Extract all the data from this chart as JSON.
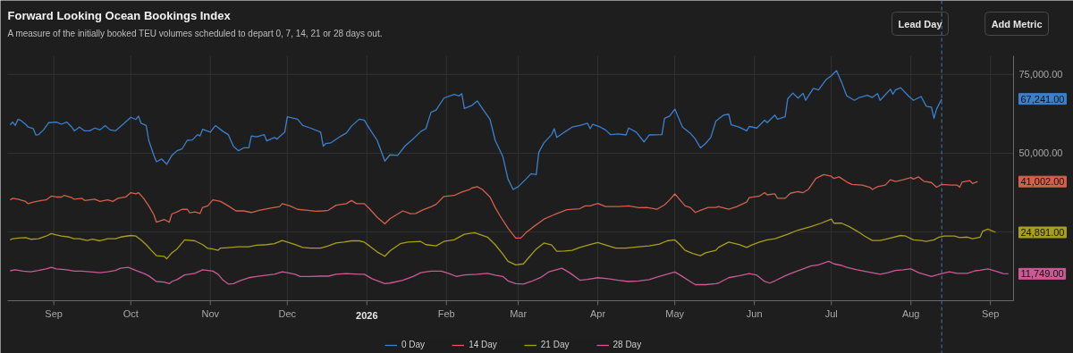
{
  "chart_data": {
    "type": "line",
    "title": "Forward Looking Ocean Bookings Index",
    "subtitle": "A measure of the initially booked TEU volumes scheduled to depart 0, 7, 14, 21 or 28 days out.",
    "xlim": [
      "2025-08-14",
      "2026-09-10"
    ],
    "xticks": [
      {
        "value": "2025-09-01",
        "label": "Sep"
      },
      {
        "value": "2025-10-01",
        "label": "Oct"
      },
      {
        "value": "2025-11-01",
        "label": "Nov"
      },
      {
        "value": "2025-12-01",
        "label": "Dec"
      },
      {
        "value": "2026-01-01",
        "label": "2026"
      },
      {
        "value": "2026-02-01",
        "label": "Feb"
      },
      {
        "value": "2026-03-01",
        "label": "Mar"
      },
      {
        "value": "2026-04-01",
        "label": "Apr"
      },
      {
        "value": "2026-05-01",
        "label": "May"
      },
      {
        "value": "2026-06-01",
        "label": "Jun"
      },
      {
        "value": "2026-07-01",
        "label": "Jul"
      },
      {
        "value": "2026-08-01",
        "label": "Aug"
      },
      {
        "value": "2026-09-01",
        "label": "Sep"
      }
    ],
    "ylim": [
      3200,
      80900
    ],
    "yticks": [
      {
        "value": 25000,
        "label": null
      },
      {
        "value": 50000,
        "label": "50,000.00"
      },
      {
        "value": 75000,
        "label": "75,000.00"
      }
    ],
    "grid": true,
    "legend": "bottom",
    "ref_lines": [
      {
        "axis": "x",
        "value": "2026-08-13",
        "color": "#4a78a8",
        "line_style": "dashed"
      }
    ],
    "annotations": [
      "Lead Day",
      "Add Metric",
      "67,241.00",
      "41,002.00",
      "24,891.00",
      "11,749.00"
    ],
    "series": [
      {
        "name": "0 Day",
        "color": "#3a80cc",
        "x": [
          "2025-08-15",
          "2025-08-16",
          "2025-08-17",
          "2025-08-18",
          "2025-08-19",
          "2025-08-21",
          "2025-08-22",
          "2025-08-24",
          "2025-08-25",
          "2025-08-26",
          "2025-08-28",
          "2025-08-30",
          "2025-09-02",
          "2025-09-04",
          "2025-09-06",
          "2025-09-08",
          "2025-09-09",
          "2025-09-11",
          "2025-09-13",
          "2025-09-15",
          "2025-09-17",
          "2025-09-19",
          "2025-09-21",
          "2025-09-23",
          "2025-09-25",
          "2025-09-28",
          "2025-10-01",
          "2025-10-03",
          "2025-10-04",
          "2025-10-05",
          "2025-10-07",
          "2025-10-08",
          "2025-10-10",
          "2025-10-11",
          "2025-10-13",
          "2025-10-15",
          "2025-10-17",
          "2025-10-19",
          "2025-10-21",
          "2025-10-23",
          "2025-10-25",
          "2025-10-27",
          "2025-10-28",
          "2025-10-29",
          "2025-11-01",
          "2025-11-03",
          "2025-11-06",
          "2025-11-08",
          "2025-11-10",
          "2025-11-12",
          "2025-11-14",
          "2025-11-16",
          "2025-11-17",
          "2025-11-19",
          "2025-11-22",
          "2025-11-23",
          "2025-11-26",
          "2025-11-27",
          "2025-11-30",
          "2025-12-01",
          "2025-12-05",
          "2025-12-07",
          "2025-12-10",
          "2025-12-14",
          "2025-12-15",
          "2025-12-16",
          "2025-12-18",
          "2025-12-22",
          "2025-12-24",
          "2025-12-26",
          "2025-12-29",
          "2025-12-31",
          "2026-01-02",
          "2026-01-05",
          "2026-01-08",
          "2026-01-10",
          "2026-01-13",
          "2026-01-16",
          "2026-01-19",
          "2026-01-22",
          "2026-01-24",
          "2026-01-26",
          "2026-01-28",
          "2026-01-31",
          "2026-02-04",
          "2026-02-06",
          "2026-02-07",
          "2026-02-08",
          "2026-02-11",
          "2026-02-13",
          "2026-02-15",
          "2026-02-18",
          "2026-02-20",
          "2026-02-23",
          "2026-02-25",
          "2026-02-27",
          "2026-03-01",
          "2026-03-04",
          "2026-03-06",
          "2026-03-08",
          "2026-03-09",
          "2026-03-11",
          "2026-03-14",
          "2026-03-15",
          "2026-03-16",
          "2026-03-19",
          "2026-03-22",
          "2026-03-25",
          "2026-03-28",
          "2026-03-29",
          "2026-03-30",
          "2026-04-02",
          "2026-04-04",
          "2026-04-06",
          "2026-04-09",
          "2026-04-12",
          "2026-04-13",
          "2026-04-16",
          "2026-04-19",
          "2026-04-21",
          "2026-04-26",
          "2026-04-27",
          "2026-04-29",
          "2026-05-01",
          "2026-05-04",
          "2026-05-07",
          "2026-05-09",
          "2026-05-11",
          "2026-05-13",
          "2026-05-15",
          "2026-05-17",
          "2026-05-20",
          "2026-05-22",
          "2026-05-23",
          "2026-05-26",
          "2026-05-29",
          "2026-05-30",
          "2026-06-02",
          "2026-06-05",
          "2026-06-06",
          "2026-06-09",
          "2026-06-10",
          "2026-06-13",
          "2026-06-14",
          "2026-06-16",
          "2026-06-18",
          "2026-06-20",
          "2026-06-21",
          "2026-06-24",
          "2026-06-26",
          "2026-06-29",
          "2026-07-01",
          "2026-07-03",
          "2026-07-05",
          "2026-07-07",
          "2026-07-10",
          "2026-07-12",
          "2026-07-15",
          "2026-07-17",
          "2026-07-19",
          "2026-07-20",
          "2026-07-24",
          "2026-07-25",
          "2026-07-26",
          "2026-07-28",
          "2026-07-31",
          "2026-08-02",
          "2026-08-05",
          "2026-08-07",
          "2026-08-09",
          "2026-08-10",
          "2026-08-11",
          "2026-08-13"
        ],
        "values": [
          59000,
          59900,
          58800,
          60700,
          60500,
          59200,
          58300,
          57800,
          55800,
          55900,
          57400,
          59700,
          59900,
          59200,
          59900,
          58300,
          57100,
          58300,
          57100,
          57100,
          58000,
          57400,
          58800,
          57400,
          57100,
          59200,
          61400,
          60700,
          61800,
          59500,
          58800,
          54100,
          49300,
          47300,
          48200,
          46500,
          49300,
          50800,
          51400,
          54100,
          54200,
          55900,
          55500,
          57600,
          56700,
          58800,
          56900,
          55900,
          52200,
          50800,
          51700,
          51700,
          55500,
          55200,
          55900,
          53900,
          55000,
          54500,
          56700,
          61600,
          60800,
          58800,
          58000,
          56700,
          52200,
          53100,
          53300,
          55500,
          56400,
          58600,
          60800,
          60500,
          57800,
          54100,
          47500,
          49500,
          49300,
          52400,
          54500,
          56900,
          57800,
          63000,
          63700,
          67500,
          68700,
          68200,
          68900,
          64200,
          65200,
          66600,
          64200,
          60700,
          54100,
          48900,
          41800,
          38500,
          39400,
          41800,
          43500,
          43200,
          50300,
          53300,
          55900,
          57800,
          55000,
          56700,
          58300,
          58800,
          59500,
          57800,
          59200,
          58300,
          57400,
          55900,
          56100,
          55800,
          58000,
          56700,
          53600,
          55800,
          55900,
          61100,
          61800,
          64000,
          58300,
          56400,
          54500,
          51700,
          53100,
          55000,
          60200,
          62100,
          62400,
          59000,
          58300,
          57100,
          58500,
          58000,
          60500,
          59700,
          62100,
          60800,
          61600,
          67300,
          69100,
          67500,
          69000,
          66800,
          70600,
          70100,
          73400,
          74600,
          76200,
          72500,
          68200,
          66800,
          67700,
          68400,
          67700,
          68900,
          66800,
          70300,
          68700,
          70100,
          70800,
          68200,
          66800,
          68000,
          64900,
          64600,
          61100,
          64000,
          67241
        ]
      },
      {
        "name": "14 Day",
        "color": "#d2604a",
        "x": [
          "2025-08-15",
          "2025-08-16",
          "2025-08-18",
          "2025-08-21",
          "2025-08-22",
          "2025-08-24",
          "2025-08-27",
          "2025-08-29",
          "2025-08-31",
          "2025-09-02",
          "2025-09-04",
          "2025-09-05",
          "2025-09-08",
          "2025-09-09",
          "2025-09-12",
          "2025-09-13",
          "2025-09-15",
          "2025-09-17",
          "2025-09-19",
          "2025-09-22",
          "2025-09-24",
          "2025-09-26",
          "2025-09-29",
          "2025-10-01",
          "2025-10-03",
          "2025-10-04",
          "2025-10-06",
          "2025-10-08",
          "2025-10-10",
          "2025-10-11",
          "2025-10-14",
          "2025-10-16",
          "2025-10-17",
          "2025-10-19",
          "2025-10-21",
          "2025-10-23",
          "2025-10-24",
          "2025-10-26",
          "2025-10-28",
          "2025-10-29",
          "2025-10-31",
          "2025-11-02",
          "2025-11-05",
          "2025-11-08",
          "2025-11-11",
          "2025-11-14",
          "2025-11-17",
          "2025-11-20",
          "2025-11-24",
          "2025-11-28",
          "2025-11-29",
          "2025-12-02",
          "2025-12-05",
          "2025-12-09",
          "2025-12-12",
          "2025-12-15",
          "2025-12-17",
          "2025-12-20",
          "2025-12-24",
          "2025-12-26",
          "2025-12-28",
          "2025-12-31",
          "2026-01-02",
          "2026-01-05",
          "2026-01-08",
          "2026-01-10",
          "2026-01-15",
          "2026-01-18",
          "2026-01-20",
          "2026-01-23",
          "2026-01-26",
          "2026-01-28",
          "2026-01-31",
          "2026-02-04",
          "2026-02-07",
          "2026-02-10",
          "2026-02-11",
          "2026-02-13",
          "2026-02-15",
          "2026-02-18",
          "2026-02-20",
          "2026-02-22",
          "2026-02-25",
          "2026-02-28",
          "2026-03-02",
          "2026-03-04",
          "2026-03-07",
          "2026-03-11",
          "2026-03-15",
          "2026-03-20",
          "2026-03-25",
          "2026-03-27",
          "2026-03-29",
          "2026-04-01",
          "2026-04-04",
          "2026-04-09",
          "2026-04-13",
          "2026-04-17",
          "2026-04-20",
          "2026-04-24",
          "2026-04-27",
          "2026-04-29",
          "2026-05-01",
          "2026-05-03",
          "2026-05-05",
          "2026-05-07",
          "2026-05-09",
          "2026-05-11",
          "2026-05-14",
          "2026-05-17",
          "2026-05-18",
          "2026-05-22",
          "2026-05-25",
          "2026-05-29",
          "2026-05-30",
          "2026-06-03",
          "2026-06-05",
          "2026-06-06",
          "2026-06-09",
          "2026-06-10",
          "2026-06-13",
          "2026-06-15",
          "2026-06-18",
          "2026-06-20",
          "2026-06-22",
          "2026-06-25",
          "2026-06-28",
          "2026-07-01",
          "2026-07-02",
          "2026-07-04",
          "2026-07-07",
          "2026-07-09",
          "2026-07-13",
          "2026-07-16",
          "2026-07-17",
          "2026-07-19",
          "2026-07-22",
          "2026-07-24",
          "2026-07-26",
          "2026-07-29",
          "2026-08-01",
          "2026-08-02",
          "2026-08-04",
          "2026-08-06",
          "2026-08-09",
          "2026-08-11",
          "2026-08-13",
          "2026-08-17",
          "2026-08-19",
          "2026-08-20",
          "2026-08-21",
          "2026-08-24",
          "2026-08-25",
          "2026-08-27"
        ],
        "values": [
          35200,
          35700,
          35400,
          34700,
          34000,
          34500,
          35000,
          35200,
          36400,
          36100,
          36100,
          36600,
          35900,
          35400,
          35700,
          35000,
          35200,
          35400,
          34700,
          35200,
          34700,
          35700,
          36100,
          37500,
          37100,
          37500,
          35700,
          33300,
          30500,
          28100,
          29000,
          28100,
          30700,
          31400,
          32200,
          32200,
          31100,
          31400,
          30900,
          32800,
          33300,
          35200,
          34700,
          33300,
          31700,
          31700,
          31200,
          31900,
          32500,
          33100,
          34000,
          33300,
          32200,
          31900,
          31600,
          31700,
          31900,
          33500,
          34000,
          35000,
          34000,
          34000,
          32400,
          29700,
          27600,
          29200,
          31700,
          30800,
          30900,
          32100,
          33000,
          33800,
          36300,
          36600,
          37700,
          38500,
          39000,
          39400,
          38500,
          36100,
          32800,
          30000,
          26200,
          23100,
          23100,
          24800,
          26700,
          29100,
          30500,
          32100,
          32400,
          33300,
          33300,
          34100,
          33100,
          33100,
          33300,
          32700,
          32800,
          32200,
          33600,
          35200,
          37100,
          35200,
          33300,
          32800,
          31200,
          31900,
          32800,
          32800,
          33100,
          32200,
          33000,
          34500,
          35900,
          36400,
          37500,
          36800,
          37100,
          35700,
          35700,
          37300,
          37800,
          37500,
          38500,
          42000,
          43200,
          42700,
          42000,
          42500,
          40900,
          40100,
          39900,
          39200,
          38500,
          39400,
          39900,
          41600,
          41000,
          41600,
          42300,
          41800,
          42500,
          41100,
          40700,
          39200,
          40100,
          39900,
          39900,
          39200,
          40900,
          41300,
          40400,
          41002
        ]
      },
      {
        "name": "21 Day",
        "color": "#a79f1a",
        "x": [
          "2025-08-15",
          "2025-08-16",
          "2025-08-18",
          "2025-08-21",
          "2025-08-23",
          "2025-08-26",
          "2025-08-29",
          "2025-08-31",
          "2025-09-02",
          "2025-09-04",
          "2025-09-07",
          "2025-09-09",
          "2025-09-11",
          "2025-09-14",
          "2025-09-16",
          "2025-09-19",
          "2025-09-22",
          "2025-09-25",
          "2025-09-27",
          "2025-10-01",
          "2025-10-03",
          "2025-10-05",
          "2025-10-07",
          "2025-10-09",
          "2025-10-11",
          "2025-10-14",
          "2025-10-15",
          "2025-10-17",
          "2025-10-19",
          "2025-10-22",
          "2025-10-26",
          "2025-10-29",
          "2025-10-31",
          "2025-11-02",
          "2025-11-04",
          "2025-11-05",
          "2025-11-09",
          "2025-11-12",
          "2025-11-16",
          "2025-11-19",
          "2025-11-23",
          "2025-11-26",
          "2025-11-29",
          "2025-12-01",
          "2025-12-04",
          "2025-12-07",
          "2025-12-10",
          "2025-12-14",
          "2025-12-17",
          "2025-12-20",
          "2025-12-23",
          "2025-12-26",
          "2025-12-29",
          "2025-12-31",
          "2026-01-02",
          "2026-01-05",
          "2026-01-08",
          "2026-01-10",
          "2026-01-14",
          "2026-01-17",
          "2026-01-22",
          "2026-01-24",
          "2026-01-28",
          "2026-01-31",
          "2026-02-04",
          "2026-02-08",
          "2026-02-12",
          "2026-02-17",
          "2026-02-20",
          "2026-02-23",
          "2026-02-25",
          "2026-02-28",
          "2026-03-03",
          "2026-03-05",
          "2026-03-08",
          "2026-03-11",
          "2026-03-14",
          "2026-03-16",
          "2026-03-19",
          "2026-03-22",
          "2026-03-25",
          "2026-03-29",
          "2026-04-01",
          "2026-04-04",
          "2026-04-08",
          "2026-04-12",
          "2026-04-17",
          "2026-04-21",
          "2026-04-25",
          "2026-04-28",
          "2026-05-01",
          "2026-05-03",
          "2026-05-05",
          "2026-05-08",
          "2026-05-11",
          "2026-05-13",
          "2026-05-17",
          "2026-05-18",
          "2026-05-22",
          "2026-05-26",
          "2026-05-29",
          "2026-05-31",
          "2026-06-03",
          "2026-06-06",
          "2026-06-09",
          "2026-06-14",
          "2026-06-18",
          "2026-06-23",
          "2026-06-27",
          "2026-07-01",
          "2026-07-02",
          "2026-07-05",
          "2026-07-08",
          "2026-07-11",
          "2026-07-14",
          "2026-07-17",
          "2026-07-20",
          "2026-07-23",
          "2026-07-28",
          "2026-07-30",
          "2026-08-02",
          "2026-08-05",
          "2026-08-07",
          "2026-08-10",
          "2026-08-12",
          "2026-08-14",
          "2026-08-18",
          "2026-08-20",
          "2026-08-23",
          "2026-08-25",
          "2026-08-28",
          "2026-08-29",
          "2026-08-31",
          "2026-09-03"
        ],
        "values": [
          22500,
          22900,
          23100,
          23200,
          22700,
          22900,
          23700,
          24500,
          24100,
          23700,
          23400,
          22900,
          22900,
          22300,
          22700,
          22200,
          22900,
          22900,
          23400,
          23900,
          23700,
          22500,
          21000,
          19200,
          17500,
          17300,
          16500,
          18400,
          19600,
          22500,
          22200,
          21000,
          19800,
          19600,
          19200,
          19900,
          20100,
          20300,
          20300,
          20800,
          21000,
          21300,
          22300,
          21800,
          21000,
          20100,
          19900,
          19900,
          20600,
          21500,
          21800,
          22200,
          22200,
          21800,
          20600,
          18700,
          17300,
          19000,
          21300,
          21800,
          22000,
          21000,
          20600,
          22000,
          22500,
          24300,
          24800,
          23400,
          21000,
          18000,
          15700,
          14600,
          14900,
          16800,
          19600,
          21500,
          20900,
          18900,
          19000,
          19200,
          20100,
          21000,
          21700,
          20900,
          19900,
          19900,
          20300,
          20600,
          21200,
          22200,
          22500,
          21000,
          19200,
          18200,
          17500,
          18400,
          19200,
          20100,
          21800,
          21000,
          20100,
          20900,
          21800,
          22500,
          22900,
          24300,
          25600,
          26700,
          27800,
          29100,
          27800,
          27800,
          26700,
          25300,
          23700,
          22300,
          22300,
          22900,
          23900,
          23700,
          22500,
          22300,
          22000,
          22500,
          23400,
          23700,
          23700,
          23200,
          23400,
          22900,
          23400,
          25300,
          25900,
          24891
        ]
      },
      {
        "name": "28 Day",
        "color": "#c95a94",
        "x": [
          "2025-08-15",
          "2025-08-17",
          "2025-08-20",
          "2025-08-23",
          "2025-08-26",
          "2025-08-29",
          "2025-08-31",
          "2025-09-02",
          "2025-09-06",
          "2025-09-09",
          "2025-09-12",
          "2025-09-15",
          "2025-09-19",
          "2025-09-22",
          "2025-09-25",
          "2025-09-27",
          "2025-09-30",
          "2025-10-03",
          "2025-10-06",
          "2025-10-08",
          "2025-10-11",
          "2025-10-14",
          "2025-10-16",
          "2025-10-17",
          "2025-10-19",
          "2025-10-22",
          "2025-10-26",
          "2025-10-29",
          "2025-11-02",
          "2025-11-04",
          "2025-11-06",
          "2025-11-08",
          "2025-11-10",
          "2025-11-13",
          "2025-11-16",
          "2025-11-19",
          "2025-11-23",
          "2025-11-26",
          "2025-11-29",
          "2025-12-01",
          "2025-12-04",
          "2025-12-06",
          "2025-12-10",
          "2025-12-14",
          "2025-12-17",
          "2025-12-20",
          "2025-12-24",
          "2025-12-29",
          "2025-12-31",
          "2026-01-03",
          "2026-01-08",
          "2026-01-10",
          "2026-01-15",
          "2026-01-19",
          "2026-01-22",
          "2026-01-26",
          "2026-01-30",
          "2026-02-02",
          "2026-02-05",
          "2026-02-08",
          "2026-02-13",
          "2026-02-17",
          "2026-02-20",
          "2026-02-23",
          "2026-02-25",
          "2026-02-28",
          "2026-03-03",
          "2026-03-06",
          "2026-03-10",
          "2026-03-13",
          "2026-03-18",
          "2026-03-21",
          "2026-03-25",
          "2026-03-28",
          "2026-04-01",
          "2026-04-05",
          "2026-04-09",
          "2026-04-13",
          "2026-04-17",
          "2026-04-21",
          "2026-04-24",
          "2026-04-27",
          "2026-05-01",
          "2026-05-03",
          "2026-05-07",
          "2026-05-09",
          "2026-05-13",
          "2026-05-17",
          "2026-05-18",
          "2026-05-22",
          "2026-05-26",
          "2026-05-30",
          "2026-06-02",
          "2026-06-05",
          "2026-06-07",
          "2026-06-09",
          "2026-06-13",
          "2026-06-16",
          "2026-06-20",
          "2026-06-23",
          "2026-06-26",
          "2026-06-30",
          "2026-07-02",
          "2026-07-05",
          "2026-07-07",
          "2026-07-11",
          "2026-07-15",
          "2026-07-20",
          "2026-07-23",
          "2026-07-26",
          "2026-07-29",
          "2026-08-01",
          "2026-08-04",
          "2026-08-09",
          "2026-08-12",
          "2026-08-16",
          "2026-08-19",
          "2026-08-23",
          "2026-08-26",
          "2026-08-28",
          "2026-08-31",
          "2026-09-03",
          "2026-09-06",
          "2026-09-08"
        ],
        "values": [
          12700,
          13000,
          12600,
          12400,
          12800,
          13300,
          13800,
          13300,
          13000,
          12600,
          12600,
          12400,
          12100,
          12400,
          12800,
          13500,
          13800,
          12800,
          11900,
          11100,
          9300,
          9100,
          8600,
          9300,
          9900,
          11400,
          11900,
          13000,
          12600,
          11600,
          9700,
          8500,
          8600,
          9700,
          10500,
          10900,
          11300,
          11600,
          12400,
          12100,
          11600,
          10900,
          10900,
          11000,
          11000,
          11600,
          11800,
          11600,
          11600,
          10200,
          8600,
          8800,
          9700,
          10900,
          12100,
          12600,
          12600,
          11800,
          10900,
          11400,
          11600,
          11900,
          11300,
          10900,
          9500,
          8600,
          8500,
          9300,
          10700,
          12400,
          13500,
          12100,
          9700,
          10000,
          10500,
          10200,
          9700,
          9300,
          9500,
          9900,
          10700,
          11400,
          12300,
          11400,
          9300,
          8300,
          8300,
          8600,
          8800,
          10500,
          11100,
          11800,
          11300,
          9300,
          8800,
          9500,
          11100,
          12100,
          13300,
          14200,
          14600,
          15700,
          14900,
          14400,
          13800,
          13000,
          12400,
          11600,
          12100,
          12800,
          13000,
          13300,
          12100,
          10900,
          11600,
          12400,
          11900,
          11900,
          12700,
          12900,
          13300,
          12600,
          11800,
          11749
        ]
      }
    ]
  }
}
